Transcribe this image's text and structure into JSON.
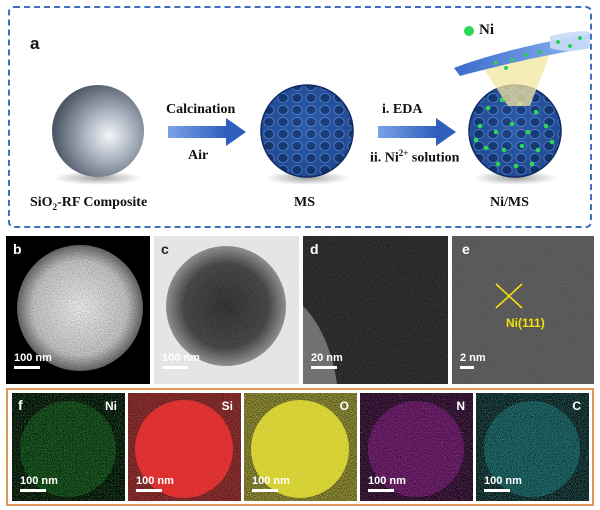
{
  "panel_a": {
    "label": "a",
    "composite_label_pre": "SiO",
    "composite_label_sub": "2",
    "composite_label_post": "-RF Composite",
    "step1_top": "Calcination",
    "step1_bottom": "Air",
    "ms_label": "MS",
    "step2_top": "i. EDA",
    "step2_bottom_pre": "ii. Ni",
    "step2_bottom_sup": "2+",
    "step2_bottom_post": " solution",
    "nims_label": "Ni/MS",
    "legend_ni": "Ni"
  },
  "micrographs": [
    {
      "label": "b",
      "scale": "100 nm"
    },
    {
      "label": "c",
      "scale": "100 nm"
    },
    {
      "label": "d",
      "scale": "20 nm"
    },
    {
      "label": "e",
      "scale": "2 nm",
      "annotation": "Ni(111)"
    }
  ],
  "eds_maps": [
    {
      "label": "f",
      "element": "Ni",
      "scale": "100 nm",
      "color": "#1fbf2a"
    },
    {
      "element": "Si",
      "scale": "100 nm",
      "color": "#e31c1c"
    },
    {
      "element": "O",
      "scale": "100 nm",
      "color": "#d8d21a"
    },
    {
      "element": "N",
      "scale": "100 nm",
      "color": "#c21fbf"
    },
    {
      "element": "C",
      "scale": "100 nm",
      "color": "#1fb8b8"
    }
  ],
  "colors": {
    "panel_border": "#3f6fbf",
    "eds_border": "#e0965a",
    "arrow": "#3c6fd1",
    "nickel": "#22c35a"
  }
}
